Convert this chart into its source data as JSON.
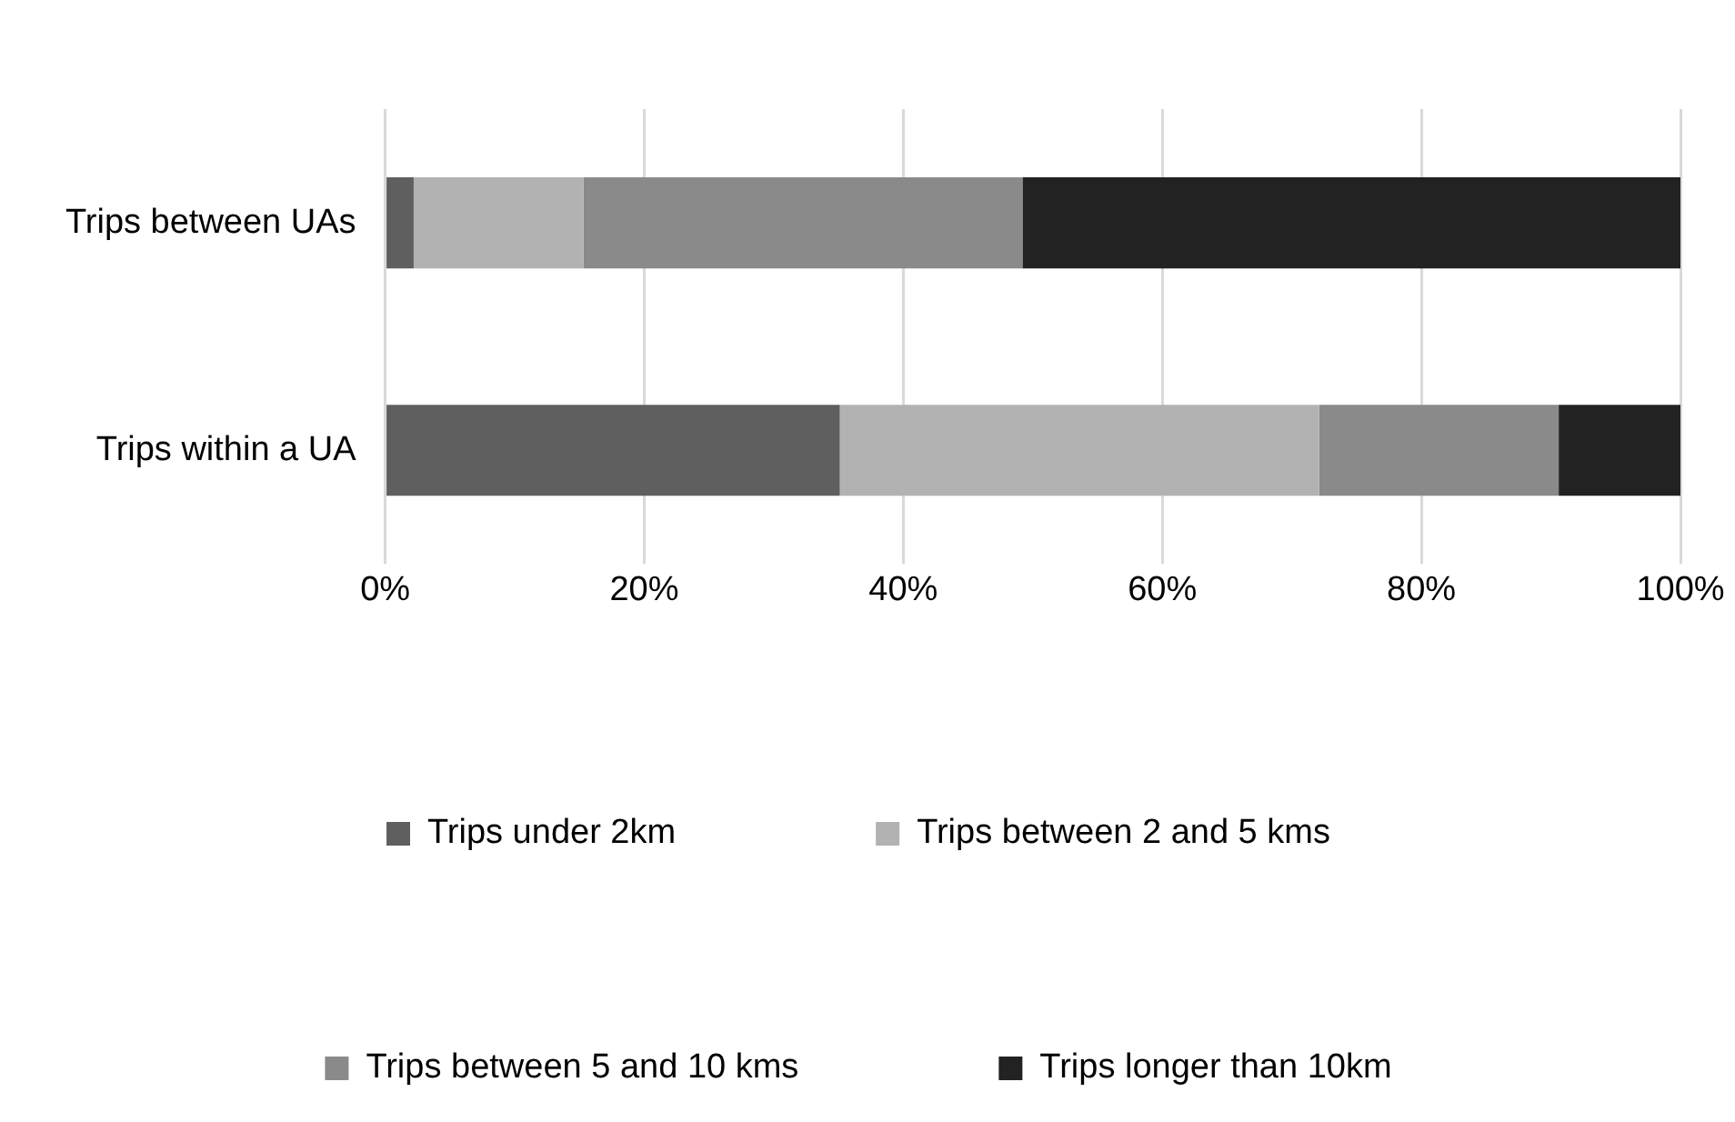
{
  "chart_data": {
    "type": "bar",
    "orientation": "horizontal",
    "stacked": true,
    "categories": [
      "Trips between UAs",
      "Trips within a UA"
    ],
    "series": [
      {
        "name": "Trips under 2km",
        "color": "#5f5f5f",
        "values": [
          2.2,
          35.1
        ]
      },
      {
        "name": "Trips between 2 and 5 kms",
        "color": "#b2b2b2",
        "values": [
          13.1,
          37.0
        ]
      },
      {
        "name": "Trips between 5 and 10 kms",
        "color": "#8a8a8a",
        "values": [
          33.9,
          18.5
        ]
      },
      {
        "name": "Trips longer than 10km",
        "color": "#222222",
        "values": [
          50.8,
          9.4
        ]
      }
    ],
    "xlim": [
      0,
      100
    ],
    "xticks": [
      {
        "value": 0,
        "label": "0%"
      },
      {
        "value": 20,
        "label": "20%"
      },
      {
        "value": 40,
        "label": "40%"
      },
      {
        "value": 60,
        "label": "60%"
      },
      {
        "value": 80,
        "label": "80%"
      },
      {
        "value": 100,
        "label": "100%"
      }
    ],
    "grid": "x",
    "legend": "bottom"
  }
}
